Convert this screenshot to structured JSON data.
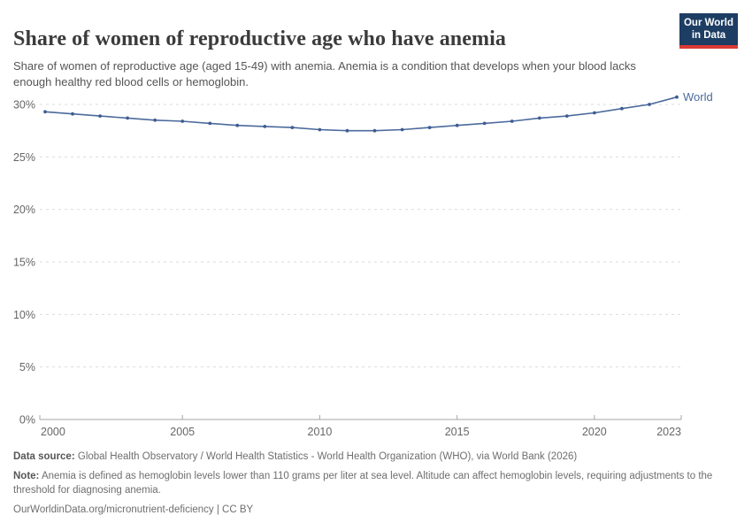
{
  "header": {
    "title": "Share of women of reproductive age who have anemia",
    "subtitle": "Share of women of reproductive age (aged 15-49) with anemia. Anemia is a condition that develops when your blood lacks enough healthy red blood cells or hemoglobin.",
    "logo": {
      "line1": "Our World",
      "line2": "in Data"
    }
  },
  "colors": {
    "line": "#4C6A9C",
    "marker": "#3F5C94",
    "series_label": "#4C6A9C",
    "grid": "#DBDBDB",
    "axis": "#A5A5A5",
    "tick_label": "#666666",
    "title": "#3b3b3b",
    "subtitle": "#555555",
    "footer": "#6e6e6e",
    "logo_bg": "#1d3d63",
    "logo_accent": "#d93a34"
  },
  "chart_data": {
    "type": "line",
    "title": "Share of women of reproductive age who have anemia",
    "xlabel": "",
    "ylabel": "",
    "x": [
      2000,
      2001,
      2002,
      2003,
      2004,
      2005,
      2006,
      2007,
      2008,
      2009,
      2010,
      2011,
      2012,
      2013,
      2014,
      2015,
      2016,
      2017,
      2018,
      2019,
      2020,
      2021,
      2022,
      2023
    ],
    "series": [
      {
        "name": "World",
        "values": [
          29.3,
          29.1,
          28.9,
          28.7,
          28.5,
          28.4,
          28.2,
          28.0,
          27.9,
          27.8,
          27.6,
          27.5,
          27.5,
          27.6,
          27.8,
          28.0,
          28.2,
          28.4,
          28.7,
          28.9,
          29.2,
          29.6,
          30.0,
          30.7
        ]
      }
    ],
    "ylim": [
      0,
      30
    ],
    "yticks": [
      0,
      5,
      10,
      15,
      20,
      25,
      30
    ],
    "ytick_suffix": "%",
    "xticks": [
      2000,
      2005,
      2010,
      2015,
      2020,
      2023
    ],
    "grid": "horizontal-dashed",
    "legend": "end-of-line-label"
  },
  "footer": {
    "datasource_label": "Data source:",
    "datasource_text": "Global Health Observatory / World Health Statistics - World Health Organization (WHO), via World Bank (2026)",
    "note_label": "Note:",
    "note_text": "Anemia is defined as hemoglobin levels lower than 110 grams per liter at sea level. Altitude can affect hemoglobin levels, requiring adjustments to the threshold for diagnosing anemia.",
    "link": "OurWorldinData.org/micronutrient-deficiency | CC BY"
  }
}
